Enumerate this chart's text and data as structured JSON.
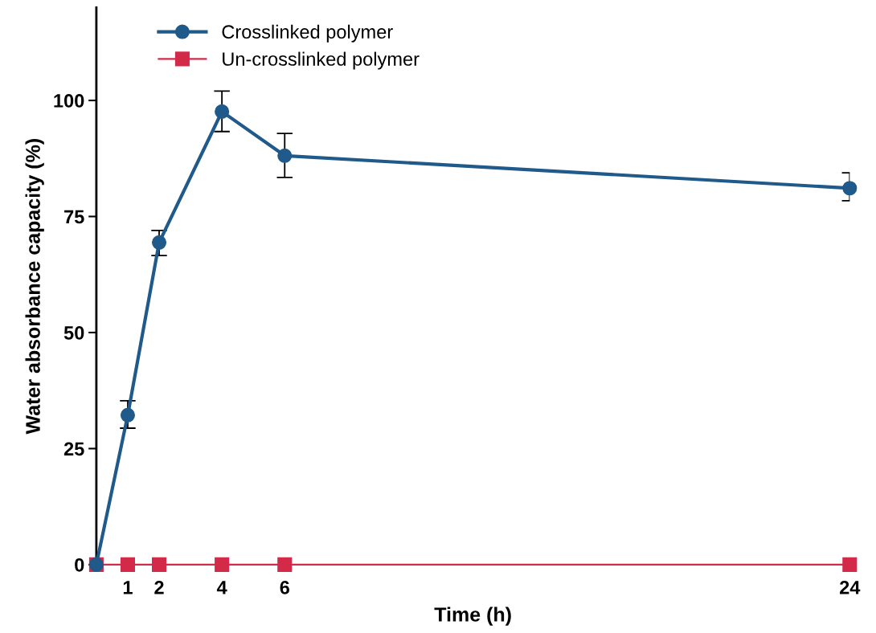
{
  "chart_data": {
    "type": "line",
    "xlabel": "Time (h)",
    "ylabel": "Water absorbance capacity (%)",
    "x": [
      0,
      1,
      2,
      4,
      6,
      24
    ],
    "xlim": [
      0,
      24
    ],
    "xticks": [
      1,
      2,
      4,
      6,
      24
    ],
    "ylim": [
      0,
      120
    ],
    "yticks": [
      0,
      25,
      50,
      75,
      100
    ],
    "series": [
      {
        "name": "Crosslinked polymer",
        "color": "#1f5a8a",
        "marker": "circle",
        "values": [
          0,
          32.2,
          69.4,
          97.6,
          88.1,
          81.1
        ],
        "errors": [
          null,
          [
            29.4,
            35.3
          ],
          [
            66.6,
            72.0
          ],
          [
            93.3,
            102.0
          ],
          [
            83.4,
            92.9
          ],
          [
            78.4,
            84.4
          ]
        ]
      },
      {
        "name": "Un-crosslinked polymer",
        "color": "#d42a4a",
        "marker": "square",
        "values": [
          0,
          0,
          0,
          0,
          0,
          0
        ]
      }
    ],
    "legend": "top left",
    "grid": false
  }
}
